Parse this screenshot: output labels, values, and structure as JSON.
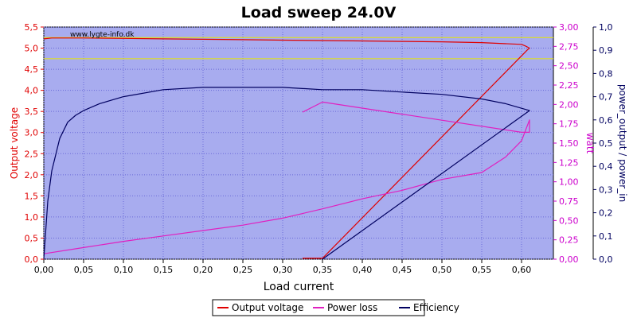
{
  "chart_data": {
    "type": "line",
    "title": "Load sweep 24.0V",
    "watermark": "www.lygte-info.dk",
    "xlabel": "Load current",
    "ylabel_left": "Output voltage",
    "ylabel_right1": "watt",
    "ylabel_right2": "power_output / power_in",
    "xlim": [
      0,
      0.64
    ],
    "ylim_left": [
      0,
      5.5
    ],
    "ylim_right1": [
      0,
      3.0
    ],
    "ylim_right2": [
      0,
      1.0
    ],
    "x_ticks": [
      "0,00",
      "0,05",
      "0,10",
      "0,15",
      "0,20",
      "0,25",
      "0,30",
      "0,35",
      "0,40",
      "0,45",
      "0,50",
      "0,55",
      "0,60"
    ],
    "y_left_ticks": [
      "0,0",
      "0,5",
      "1,0",
      "1,5",
      "2,0",
      "2,5",
      "3,0",
      "3,5",
      "4,0",
      "4,5",
      "5,0",
      "5,5"
    ],
    "y_right1_ticks": [
      "0,00",
      "0,25",
      "0,50",
      "0,75",
      "1,00",
      "1,25",
      "1,50",
      "1,75",
      "2,00",
      "2,25",
      "2,50",
      "2,75",
      "3,00"
    ],
    "y_right2_ticks": [
      "0,0",
      "0,1",
      "0,2",
      "0,3",
      "0,4",
      "0,5",
      "0,6",
      "0,7",
      "0,8",
      "0,9",
      "1,0"
    ],
    "grid": true,
    "legend_position": "bottom",
    "reference_lines": [
      {
        "axis": "left",
        "value": 5.25,
        "color": "#e6e600"
      },
      {
        "axis": "left",
        "value": 4.75,
        "color": "#e6e600"
      }
    ],
    "series": [
      {
        "name": "Output voltage",
        "axis": "left",
        "color": "#e00000",
        "x": [
          0.0,
          0.01,
          0.05,
          0.1,
          0.15,
          0.2,
          0.25,
          0.3,
          0.35,
          0.4,
          0.45,
          0.5,
          0.55,
          0.6,
          0.605,
          0.61,
          0.608,
          0.35,
          0.325
        ],
        "y": [
          5.22,
          5.24,
          5.24,
          5.23,
          5.22,
          5.21,
          5.2,
          5.19,
          5.18,
          5.17,
          5.16,
          5.15,
          5.13,
          5.09,
          5.05,
          5.0,
          4.97,
          0.02,
          0.02
        ]
      },
      {
        "name": "Power loss",
        "axis": "right1",
        "color": "#e020c0",
        "x": [
          0.0,
          0.05,
          0.1,
          0.15,
          0.2,
          0.25,
          0.3,
          0.35,
          0.4,
          0.45,
          0.5,
          0.55,
          0.58,
          0.6,
          0.61,
          0.61,
          0.6,
          0.35,
          0.325
        ],
        "y": [
          0.07,
          0.15,
          0.23,
          0.3,
          0.37,
          0.44,
          0.53,
          0.65,
          0.78,
          0.89,
          1.03,
          1.12,
          1.32,
          1.53,
          1.8,
          1.64,
          1.64,
          2.03,
          1.9
        ]
      },
      {
        "name": "Efficiency",
        "axis": "right2",
        "color": "#000060",
        "x": [
          0.0,
          0.005,
          0.01,
          0.02,
          0.03,
          0.04,
          0.05,
          0.07,
          0.1,
          0.15,
          0.2,
          0.25,
          0.3,
          0.35,
          0.4,
          0.45,
          0.5,
          0.55,
          0.58,
          0.6,
          0.61,
          0.35
        ],
        "y": [
          0.0,
          0.25,
          0.38,
          0.52,
          0.59,
          0.62,
          0.64,
          0.67,
          0.7,
          0.73,
          0.74,
          0.74,
          0.74,
          0.73,
          0.73,
          0.72,
          0.71,
          0.69,
          0.67,
          0.65,
          0.64,
          0.0
        ]
      }
    ]
  }
}
